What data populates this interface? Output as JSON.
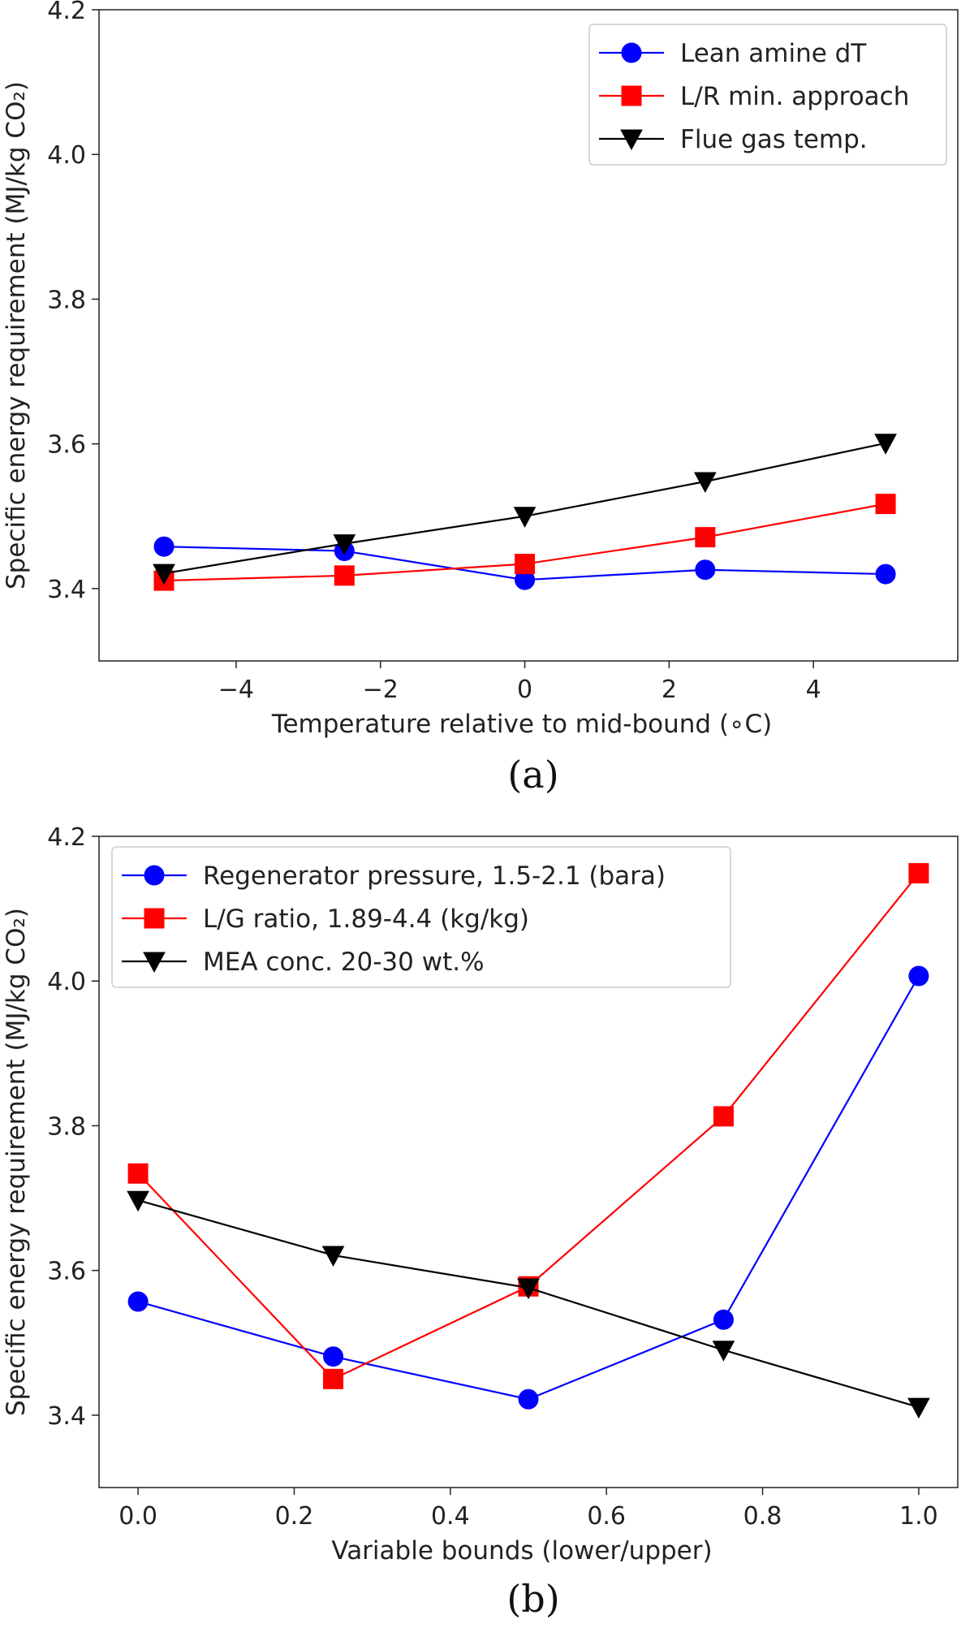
{
  "chart_data": [
    {
      "type": "line",
      "panel_label": "(a)",
      "xlabel": "Temperature relative to mid-bound (∘C)",
      "ylabel": "Specific energy requirement (MJ/kg CO₂)",
      "xlim": [
        -5.9,
        6.0
      ],
      "ylim": [
        3.3,
        4.2
      ],
      "xticks": [
        -4,
        -2,
        0,
        2,
        4
      ],
      "xtick_labels": [
        "−4",
        "−2",
        "0",
        "2",
        "4"
      ],
      "yticks": [
        3.4,
        3.6,
        3.8,
        4.0,
        4.2
      ],
      "ytick_labels": [
        "3.4",
        "3.6",
        "3.8",
        "4.0",
        "4.2"
      ],
      "legend_position": "top-right",
      "grid": false,
      "series": [
        {
          "name": "Lean amine dT",
          "color": "#0000ff",
          "marker": "circle",
          "x": [
            -5,
            -2.5,
            0,
            2.5,
            5
          ],
          "y": [
            3.458,
            3.452,
            3.412,
            3.426,
            3.42
          ]
        },
        {
          "name": "L/R min. approach",
          "color": "#ff0000",
          "marker": "square",
          "x": [
            -5,
            -2.5,
            0,
            2.5,
            5
          ],
          "y": [
            3.411,
            3.418,
            3.434,
            3.471,
            3.517
          ]
        },
        {
          "name": "Flue gas temp.",
          "color": "#000000",
          "marker": "triangle-down",
          "x": [
            -5,
            -2.5,
            0,
            2.5,
            5
          ],
          "y": [
            3.421,
            3.462,
            3.5,
            3.548,
            3.601
          ]
        }
      ]
    },
    {
      "type": "line",
      "panel_label": "(b)",
      "xlabel": "Variable bounds (lower/upper)",
      "ylabel": "Specific energy requirement (MJ/kg CO₂)",
      "xlim": [
        -0.05,
        1.05
      ],
      "ylim": [
        3.3,
        4.2
      ],
      "xticks": [
        0.0,
        0.2,
        0.4,
        0.6,
        0.8,
        1.0
      ],
      "xtick_labels": [
        "0.0",
        "0.2",
        "0.4",
        "0.6",
        "0.8",
        "1.0"
      ],
      "yticks": [
        3.4,
        3.6,
        3.8,
        4.0,
        4.2
      ],
      "ytick_labels": [
        "3.4",
        "3.6",
        "3.8",
        "4.0",
        "4.2"
      ],
      "legend_position": "top-left",
      "grid": false,
      "series": [
        {
          "name": "Regenerator pressure, 1.5-2.1 (bara)",
          "color": "#0000ff",
          "marker": "circle",
          "x": [
            0,
            0.25,
            0.5,
            0.75,
            1.0
          ],
          "y": [
            3.557,
            3.481,
            3.422,
            3.532,
            4.007
          ]
        },
        {
          "name": "L/G ratio, 1.89-4.4 (kg/kg)",
          "color": "#ff0000",
          "marker": "square",
          "x": [
            0,
            0.25,
            0.5,
            0.75,
            1.0
          ],
          "y": [
            3.734,
            3.45,
            3.578,
            3.813,
            4.149
          ]
        },
        {
          "name": "MEA conc. 20-30 wt.%",
          "color": "#000000",
          "marker": "triangle-down",
          "x": [
            0,
            0.25,
            0.5,
            0.75,
            1.0
          ],
          "y": [
            3.697,
            3.621,
            3.576,
            3.49,
            3.411
          ]
        }
      ]
    }
  ]
}
